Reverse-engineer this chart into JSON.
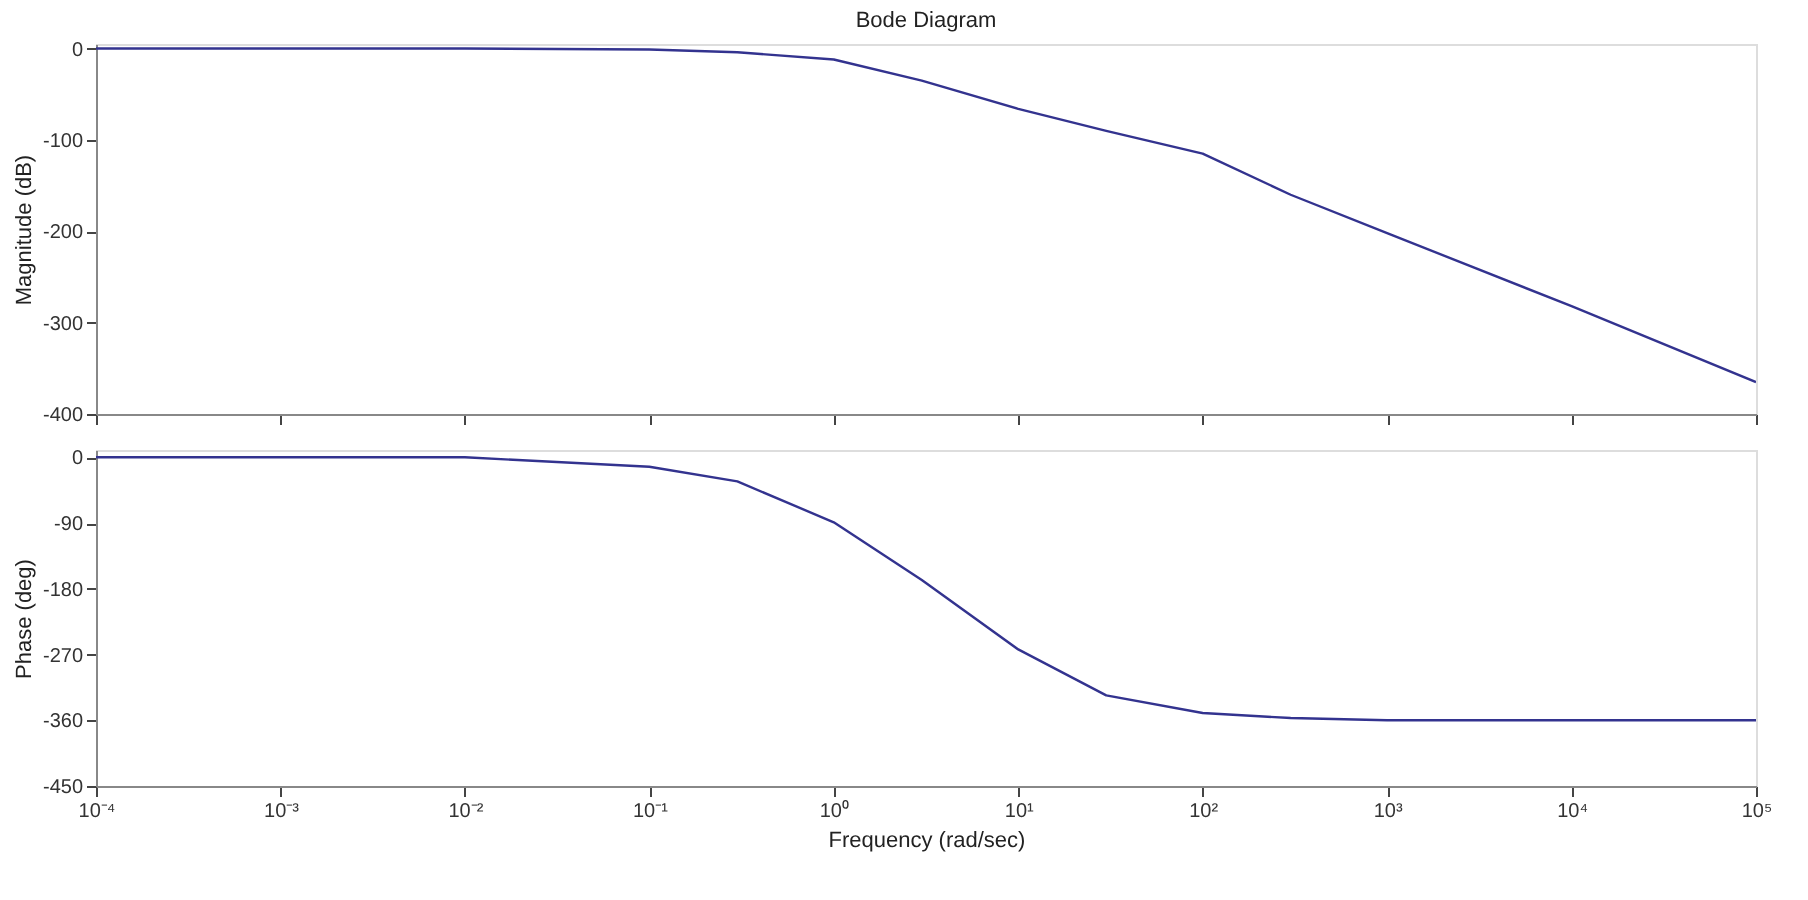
{
  "chart_data": [
    {
      "type": "line",
      "title": "Bode Diagram",
      "ylabel": "Magnitude (dB)",
      "log": "x",
      "grid": false,
      "tick_labels": "y",
      "x": [
        0.0001,
        0.001,
        0.01,
        0.1,
        0.3,
        1,
        3,
        10,
        30,
        100,
        300,
        1000,
        10000,
        100000
      ],
      "series": [
        {
          "color": "#33338f",
          "values": [
            0,
            0,
            0,
            -1,
            -4,
            -12,
            -35,
            -66,
            -90,
            -115,
            -160,
            -202,
            -282,
            -365
          ]
        }
      ],
      "xlim": [
        0.0001,
        100000
      ],
      "ylim": [
        -400,
        5
      ],
      "yticks": [
        0,
        -100,
        -200,
        -300,
        -400
      ],
      "xticks": [
        {
          "value": 0.0001,
          "label": null
        },
        {
          "value": 0.001,
          "label": null
        },
        {
          "value": 0.01,
          "label": null
        },
        {
          "value": 0.1,
          "label": null
        },
        {
          "value": 1,
          "label": null
        },
        {
          "value": 10,
          "label": null
        },
        {
          "value": 100,
          "label": null
        },
        {
          "value": 1000,
          "label": null
        },
        {
          "value": 10000,
          "label": null
        },
        {
          "value": 100000,
          "label": null
        }
      ]
    },
    {
      "type": "line",
      "xlabel": "Frequency (rad/sec)",
      "ylabel": "Phase (deg)",
      "log": "x",
      "grid": false,
      "x": [
        0.0001,
        0.001,
        0.01,
        0.1,
        0.3,
        1,
        3,
        10,
        30,
        100,
        300,
        1000,
        10000,
        100000
      ],
      "series": [
        {
          "color": "#33338f",
          "values": [
            0,
            0,
            0,
            -13,
            -33,
            -89,
            -168,
            -263,
            -326,
            -350,
            -357,
            -360,
            -360,
            -360
          ]
        }
      ],
      "xlim": [
        0.0001,
        100000
      ],
      "ylim": [
        -450,
        10
      ],
      "yticks": [
        0,
        -90,
        -180,
        -270,
        -360,
        -450
      ],
      "xticks": [
        {
          "value": 0.0001,
          "label": "10⁻⁴"
        },
        {
          "value": 0.001,
          "label": "10⁻³"
        },
        {
          "value": 0.01,
          "label": "10⁻²"
        },
        {
          "value": 0.1,
          "label": "10⁻¹"
        },
        {
          "value": 1,
          "label": "10⁰"
        },
        {
          "value": 10,
          "label": "10¹"
        },
        {
          "value": 100,
          "label": "10²"
        },
        {
          "value": 1000,
          "label": "10³"
        },
        {
          "value": 10000,
          "label": "10⁴"
        },
        {
          "value": 100000,
          "label": "10⁵"
        }
      ]
    }
  ]
}
